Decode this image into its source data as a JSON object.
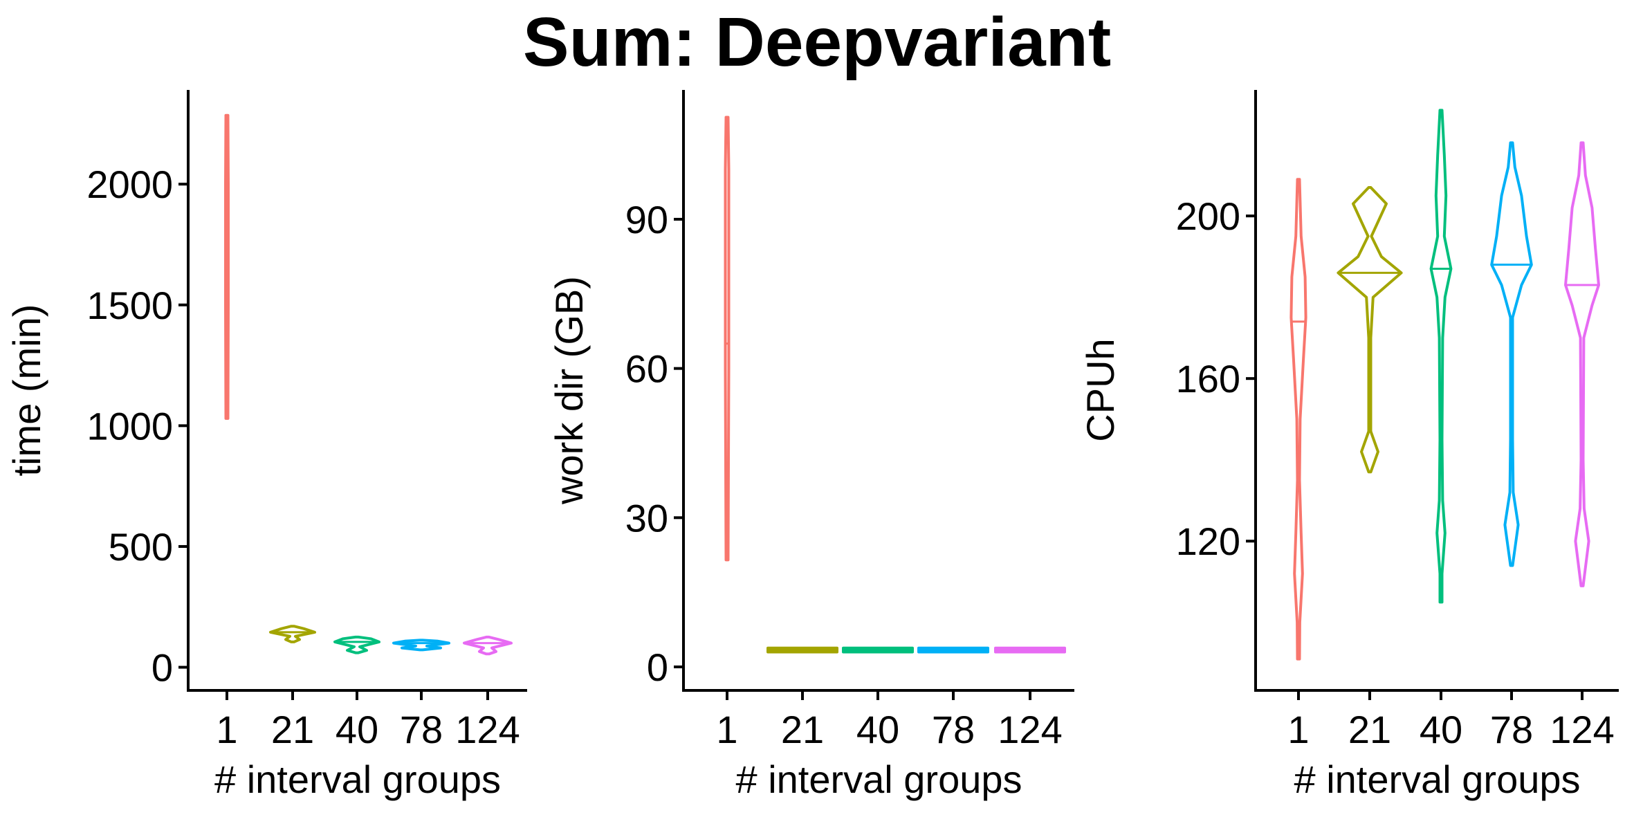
{
  "title": "Sum: Deepvariant",
  "chart_data": [
    {
      "type": "violin",
      "xlabel": "# interval groups",
      "ylabel": "time (min)",
      "categories": [
        "1",
        "21",
        "40",
        "78",
        "124"
      ],
      "yticks": [
        0,
        500,
        1000,
        1500,
        2000
      ],
      "ylim": [
        -50,
        2390
      ],
      "colors": [
        "#F8766D",
        "#A3A500",
        "#00BF7D",
        "#00B0F6",
        "#E76BF3"
      ],
      "series": [
        {
          "category": "1",
          "min": 1030,
          "max": 2285,
          "median": 1650,
          "shape": [
            [
              1030,
              0.03
            ],
            [
              1500,
              0.05
            ],
            [
              2000,
              0.05
            ],
            [
              2285,
              0.03
            ]
          ]
        },
        {
          "category": "21",
          "min": 105,
          "max": 170,
          "median": 145,
          "shape": [
            [
              105,
              0.05
            ],
            [
              115,
              0.25
            ],
            [
              128,
              0.1
            ],
            [
              145,
              0.8
            ],
            [
              160,
              0.4
            ],
            [
              170,
              0.05
            ]
          ]
        },
        {
          "category": "40",
          "min": 60,
          "max": 125,
          "median": 105,
          "shape": [
            [
              60,
              0.05
            ],
            [
              70,
              0.35
            ],
            [
              85,
              0.1
            ],
            [
              105,
              0.8
            ],
            [
              118,
              0.5
            ],
            [
              125,
              0.05
            ]
          ]
        },
        {
          "category": "78",
          "min": 72,
          "max": 112,
          "median": 100,
          "shape": [
            [
              72,
              0.05
            ],
            [
              80,
              0.7
            ],
            [
              88,
              0.2
            ],
            [
              100,
              1.0
            ],
            [
              108,
              0.6
            ],
            [
              112,
              0.05
            ]
          ]
        },
        {
          "category": "124",
          "min": 55,
          "max": 125,
          "median": 100,
          "shape": [
            [
              55,
              0.05
            ],
            [
              65,
              0.3
            ],
            [
              80,
              0.15
            ],
            [
              100,
              0.85
            ],
            [
              115,
              0.4
            ],
            [
              125,
              0.05
            ]
          ]
        }
      ]
    },
    {
      "type": "violin",
      "xlabel": "# interval groups",
      "ylabel": "work dir (GB)",
      "categories": [
        "1",
        "21",
        "40",
        "78",
        "124"
      ],
      "yticks": [
        0,
        30,
        60,
        90
      ],
      "ylim": [
        -2.5,
        116
      ],
      "colors": [
        "#F8766D",
        "#A3A500",
        "#00BF7D",
        "#00B0F6",
        "#E76BF3"
      ],
      "series": [
        {
          "category": "1",
          "min": 21.5,
          "max": 110.5,
          "median": 65,
          "shape": [
            [
              21.5,
              0.03
            ],
            [
              60,
              0.05
            ],
            [
              100,
              0.05
            ],
            [
              110.5,
              0.03
            ]
          ]
        },
        {
          "category": "21",
          "min": 3.0,
          "max": 3.8,
          "median": 3.4,
          "shape": [
            [
              3.0,
              1.0
            ],
            [
              3.4,
              1.0
            ],
            [
              3.8,
              1.0
            ]
          ]
        },
        {
          "category": "40",
          "min": 3.0,
          "max": 3.8,
          "median": 3.4,
          "shape": [
            [
              3.0,
              1.0
            ],
            [
              3.4,
              1.0
            ],
            [
              3.8,
              1.0
            ]
          ]
        },
        {
          "category": "78",
          "min": 3.0,
          "max": 3.8,
          "median": 3.4,
          "shape": [
            [
              3.0,
              1.0
            ],
            [
              3.4,
              1.0
            ],
            [
              3.8,
              1.0
            ]
          ]
        },
        {
          "category": "124",
          "min": 3.0,
          "max": 3.8,
          "median": 3.4,
          "shape": [
            [
              3.0,
              1.0
            ],
            [
              3.4,
              1.0
            ],
            [
              3.8,
              1.0
            ]
          ]
        }
      ]
    },
    {
      "type": "violin",
      "xlabel": "# interval groups",
      "ylabel": "CPUh",
      "categories": [
        "1",
        "21",
        "40",
        "78",
        "124"
      ],
      "yticks": [
        120,
        160,
        200
      ],
      "ylim": [
        86,
        231
      ],
      "colors": [
        "#F8766D",
        "#A3A500",
        "#00BF7D",
        "#00B0F6",
        "#E76BF3"
      ],
      "series": [
        {
          "category": "1",
          "min": 91,
          "max": 209,
          "median": 174,
          "shape": [
            [
              91,
              0.02
            ],
            [
              100,
              0.04
            ],
            [
              112,
              0.12
            ],
            [
              122,
              0.08
            ],
            [
              135,
              0.03
            ],
            [
              150,
              0.05
            ],
            [
              165,
              0.15
            ],
            [
              175,
              0.22
            ],
            [
              185,
              0.2
            ],
            [
              195,
              0.08
            ],
            [
              209,
              0.02
            ]
          ]
        },
        {
          "category": "21",
          "min": 137,
          "max": 207,
          "median": 186,
          "shape": [
            [
              137,
              0.02
            ],
            [
              142,
              0.25
            ],
            [
              147,
              0.02
            ],
            [
              155,
              0.01
            ],
            [
              170,
              0.01
            ],
            [
              180,
              0.1
            ],
            [
              186,
              0.95
            ],
            [
              190,
              0.35
            ],
            [
              195,
              0.05
            ],
            [
              203,
              0.5
            ],
            [
              207,
              0.02
            ]
          ]
        },
        {
          "category": "40",
          "min": 105,
          "max": 226,
          "median": 187,
          "shape": [
            [
              105,
              0.02
            ],
            [
              112,
              0.03
            ],
            [
              122,
              0.12
            ],
            [
              130,
              0.05
            ],
            [
              145,
              0.01
            ],
            [
              170,
              0.05
            ],
            [
              180,
              0.12
            ],
            [
              187,
              0.3
            ],
            [
              195,
              0.1
            ],
            [
              205,
              0.15
            ],
            [
              215,
              0.1
            ],
            [
              226,
              0.02
            ]
          ]
        },
        {
          "category": "78",
          "min": 114,
          "max": 218,
          "median": 188,
          "shape": [
            [
              114,
              0.02
            ],
            [
              124,
              0.2
            ],
            [
              132,
              0.05
            ],
            [
              145,
              0.01
            ],
            [
              175,
              0.03
            ],
            [
              183,
              0.3
            ],
            [
              188,
              0.6
            ],
            [
              195,
              0.45
            ],
            [
              205,
              0.3
            ],
            [
              212,
              0.1
            ],
            [
              218,
              0.02
            ]
          ]
        },
        {
          "category": "124",
          "min": 109,
          "max": 218,
          "median": 183,
          "shape": [
            [
              109,
              0.02
            ],
            [
              120,
              0.2
            ],
            [
              128,
              0.06
            ],
            [
              140,
              0.01
            ],
            [
              170,
              0.05
            ],
            [
              178,
              0.3
            ],
            [
              183,
              0.5
            ],
            [
              192,
              0.4
            ],
            [
              202,
              0.3
            ],
            [
              210,
              0.1
            ],
            [
              218,
              0.02
            ]
          ]
        }
      ]
    }
  ]
}
